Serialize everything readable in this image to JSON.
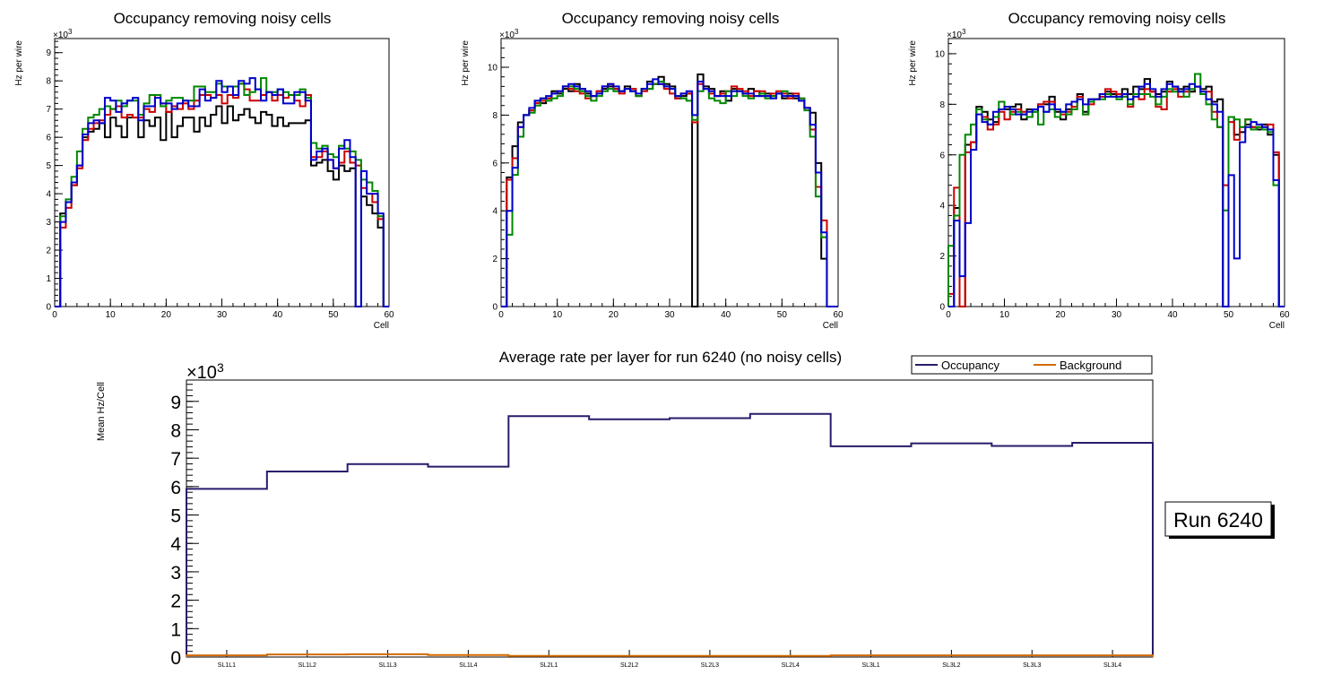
{
  "chart_data": [
    {
      "type": "histogram-step",
      "title": "Occupancy removing noisy cells",
      "xlabel": "Cell",
      "ylabel": "Hz per wire",
      "y_multiplier_label": "×10",
      "y_multiplier_exp": "3",
      "xlim": [
        0,
        60
      ],
      "ylim": [
        0,
        9500
      ],
      "x_ticks": [
        0,
        10,
        20,
        30,
        40,
        50,
        60
      ],
      "y_ticks": [
        0,
        1000,
        2000,
        3000,
        4000,
        5000,
        6000,
        7000,
        8000,
        9000
      ],
      "y_tick_labels": [
        "0",
        "1",
        "2",
        "3",
        "4",
        "5",
        "6",
        "7",
        "8",
        "9"
      ],
      "series": [
        {
          "name": "black",
          "color": "#000000",
          "values": [
            0,
            3300,
            3700,
            4300,
            5000,
            6000,
            6200,
            6300,
            6500,
            6000,
            6700,
            6400,
            6000,
            6700,
            6700,
            6000,
            6600,
            6400,
            6700,
            5900,
            6900,
            6000,
            6400,
            6700,
            6700,
            6200,
            6700,
            6400,
            6800,
            7100,
            6500,
            7100,
            6600,
            6800,
            7000,
            6700,
            6500,
            6900,
            6800,
            6400,
            6700,
            6400,
            6500,
            6500,
            6500,
            6600,
            5000,
            5100,
            5200,
            4800,
            4500,
            5000,
            4800,
            4900,
            0,
            3900,
            3600,
            3300,
            2800,
            0
          ]
        },
        {
          "name": "red",
          "color": "#cc0000",
          "values": [
            0,
            2800,
            3500,
            4300,
            4900,
            5900,
            6300,
            6500,
            6600,
            6800,
            7000,
            7100,
            6700,
            6800,
            6700,
            6700,
            7000,
            6900,
            7500,
            7200,
            6900,
            7100,
            7000,
            7200,
            7000,
            7300,
            7500,
            7500,
            7400,
            7500,
            7200,
            7500,
            7400,
            7900,
            7700,
            7300,
            7300,
            7500,
            7600,
            7300,
            7500,
            7400,
            7500,
            7300,
            7100,
            7500,
            5300,
            5300,
            5500,
            5200,
            4900,
            5100,
            5500,
            5100,
            5000,
            4200,
            4000,
            3700,
            3100,
            0
          ]
        },
        {
          "name": "green",
          "color": "#008800",
          "values": [
            0,
            3200,
            3800,
            4600,
            5500,
            6300,
            6700,
            6800,
            7000,
            7100,
            7000,
            7300,
            7100,
            7300,
            7300,
            6800,
            7200,
            7500,
            7500,
            7100,
            7300,
            7400,
            7400,
            7300,
            7300,
            7800,
            7800,
            7600,
            7600,
            7900,
            7800,
            7800,
            7800,
            7900,
            7500,
            7600,
            7700,
            8100,
            7600,
            7600,
            7700,
            7600,
            7500,
            7500,
            7700,
            7400,
            5800,
            5600,
            5700,
            5400,
            5300,
            5700,
            5600,
            5500,
            5200,
            4500,
            4400,
            4100,
            3200,
            0
          ]
        },
        {
          "name": "blue",
          "color": "#0000cc",
          "values": [
            0,
            3000,
            3700,
            4400,
            5000,
            6100,
            6500,
            6600,
            6500,
            7400,
            7300,
            6900,
            7200,
            7300,
            7400,
            6600,
            7100,
            7100,
            7400,
            7200,
            7200,
            7000,
            7200,
            7300,
            7100,
            7100,
            7700,
            7300,
            7400,
            8000,
            7600,
            7800,
            7500,
            8000,
            7900,
            8100,
            7700,
            7300,
            7600,
            7500,
            7700,
            7200,
            7200,
            7600,
            7600,
            7300,
            5200,
            5500,
            5600,
            5200,
            4900,
            5600,
            5900,
            5300,
            0,
            4800,
            4000,
            4000,
            3300,
            0
          ]
        }
      ]
    },
    {
      "type": "histogram-step",
      "title": "Occupancy removing noisy cells",
      "xlabel": "Cell",
      "ylabel": "Hz per wire",
      "y_multiplier_label": "×10",
      "y_multiplier_exp": "3",
      "xlim": [
        0,
        60
      ],
      "ylim": [
        0,
        11200
      ],
      "x_ticks": [
        0,
        10,
        20,
        30,
        40,
        50,
        60
      ],
      "y_ticks": [
        0,
        2000,
        4000,
        6000,
        8000,
        10000
      ],
      "y_tick_labels": [
        "0",
        "2",
        "4",
        "6",
        "8",
        "10"
      ],
      "series": [
        {
          "name": "black",
          "color": "#000000",
          "values": [
            0,
            5400,
            6700,
            7700,
            8000,
            8200,
            8600,
            8500,
            8700,
            9000,
            8900,
            9100,
            9000,
            9300,
            9100,
            8900,
            8800,
            9000,
            9100,
            9200,
            9100,
            9000,
            9200,
            9000,
            8800,
            9100,
            9400,
            9300,
            9600,
            9300,
            9200,
            8700,
            8800,
            8900,
            0,
            9700,
            9200,
            9100,
            8800,
            9000,
            8600,
            9100,
            9000,
            8900,
            9100,
            9000,
            8800,
            8900,
            8800,
            8900,
            8700,
            8900,
            8700,
            8600,
            8300,
            8100,
            6000,
            2000,
            0,
            0
          ]
        },
        {
          "name": "red",
          "color": "#cc0000",
          "values": [
            0,
            5300,
            6200,
            7500,
            8000,
            8200,
            8500,
            8600,
            8700,
            8900,
            9000,
            9200,
            9100,
            9000,
            8900,
            8700,
            8800,
            9000,
            9200,
            9300,
            9100,
            8900,
            9100,
            9100,
            8800,
            9000,
            9100,
            9300,
            9300,
            9100,
            8900,
            8700,
            8900,
            8900,
            7700,
            9300,
            9100,
            8900,
            8800,
            8900,
            9000,
            9200,
            9100,
            9000,
            8800,
            9000,
            9000,
            8800,
            8900,
            9000,
            8900,
            8700,
            8900,
            8700,
            8300,
            7400,
            5000,
            3600,
            0,
            0
          ]
        },
        {
          "name": "green",
          "color": "#008800",
          "values": [
            0,
            3000,
            5500,
            7100,
            8000,
            8100,
            8400,
            8700,
            8600,
            8700,
            8800,
            9200,
            9200,
            9100,
            9000,
            8800,
            8600,
            8800,
            9000,
            9100,
            9000,
            9000,
            9100,
            9000,
            8800,
            9100,
            9100,
            9300,
            9400,
            9200,
            9100,
            8800,
            8700,
            8600,
            7800,
            9000,
            9100,
            8700,
            8600,
            8500,
            9000,
            8800,
            9000,
            8800,
            8700,
            8800,
            8900,
            8700,
            8800,
            8900,
            9000,
            8800,
            8800,
            8700,
            8200,
            7100,
            4600,
            2900,
            0,
            0
          ]
        },
        {
          "name": "blue",
          "color": "#0000cc",
          "values": [
            0,
            4000,
            5800,
            7500,
            8000,
            8300,
            8600,
            8700,
            8800,
            8900,
            9000,
            9200,
            9300,
            9200,
            9100,
            9000,
            8800,
            8900,
            9200,
            9300,
            9200,
            9000,
            9100,
            9000,
            8900,
            9100,
            9300,
            9500,
            9300,
            9200,
            9100,
            8800,
            8900,
            9000,
            8000,
            9400,
            9100,
            9000,
            8800,
            8800,
            8800,
            9000,
            9000,
            8900,
            8900,
            8800,
            8800,
            8800,
            8700,
            8900,
            8800,
            8800,
            8800,
            8600,
            8300,
            7600,
            5600,
            3100,
            0,
            0
          ]
        }
      ]
    },
    {
      "type": "histogram-step",
      "title": "Occupancy removing noisy cells",
      "xlabel": "Cell",
      "ylabel": "Hz per wire",
      "y_multiplier_label": "×10",
      "y_multiplier_exp": "3",
      "xlim": [
        0,
        60
      ],
      "ylim": [
        0,
        10600
      ],
      "x_ticks": [
        0,
        10,
        20,
        30,
        40,
        50,
        60
      ],
      "y_ticks": [
        0,
        2000,
        4000,
        6000,
        8000,
        10000
      ],
      "y_tick_labels": [
        "0",
        "2",
        "4",
        "6",
        "8",
        "10"
      ],
      "series": [
        {
          "name": "black",
          "color": "#000000",
          "values": [
            0,
            3900,
            0,
            6400,
            6500,
            7900,
            7700,
            7400,
            7300,
            7800,
            7800,
            7900,
            8000,
            7400,
            7800,
            7700,
            8000,
            8000,
            8300,
            7700,
            7400,
            7800,
            8100,
            8400,
            7700,
            8200,
            8200,
            8400,
            8500,
            8400,
            8300,
            8600,
            8400,
            8700,
            8600,
            9000,
            8500,
            8400,
            8500,
            8900,
            8700,
            8600,
            8700,
            8500,
            8700,
            8600,
            8700,
            8100,
            8200,
            0,
            7500,
            6800,
            6900,
            7200,
            7100,
            7000,
            7200,
            6800,
            6000,
            0
          ]
        },
        {
          "name": "red",
          "color": "#cc0000",
          "values": [
            500,
            4700,
            0,
            6100,
            6500,
            7800,
            7500,
            7000,
            7200,
            7700,
            7400,
            7700,
            7800,
            7700,
            7500,
            7800,
            8000,
            8100,
            8100,
            7800,
            7600,
            7700,
            7900,
            8300,
            7600,
            8000,
            8200,
            8300,
            8600,
            8500,
            8400,
            8300,
            7900,
            8400,
            8200,
            8600,
            8500,
            7900,
            7800,
            8500,
            8600,
            8300,
            8500,
            8600,
            8700,
            8400,
            8500,
            7700,
            7100,
            4800,
            7300,
            6600,
            7100,
            7400,
            7100,
            7100,
            7100,
            7200,
            6100,
            0
          ]
        },
        {
          "name": "green",
          "color": "#008800",
          "values": [
            2400,
            3600,
            6000,
            6800,
            7200,
            7800,
            7400,
            7200,
            7500,
            8100,
            7900,
            7600,
            7700,
            7600,
            7500,
            7700,
            7200,
            7700,
            7800,
            7500,
            7700,
            7600,
            7800,
            8200,
            7600,
            8100,
            8200,
            8200,
            8400,
            8300,
            8200,
            8300,
            8000,
            8400,
            8400,
            8400,
            8300,
            8000,
            8300,
            8600,
            8500,
            8500,
            8300,
            8600,
            9200,
            8400,
            8000,
            7400,
            7100,
            3800,
            7500,
            7400,
            7100,
            7400,
            7000,
            7100,
            7000,
            6900,
            4800,
            0
          ]
        },
        {
          "name": "blue",
          "color": "#0000cc",
          "values": [
            0,
            3400,
            1200,
            3300,
            6200,
            7600,
            7300,
            7200,
            7700,
            7800,
            7900,
            7800,
            7600,
            7600,
            7700,
            7800,
            7900,
            7700,
            8000,
            7800,
            7700,
            8000,
            8100,
            8200,
            8000,
            8200,
            8200,
            8400,
            8300,
            8300,
            8300,
            8400,
            8200,
            8300,
            8700,
            8800,
            8600,
            8300,
            8600,
            8800,
            8700,
            8500,
            8600,
            8800,
            8700,
            8500,
            8200,
            8000,
            7700,
            0,
            5200,
            1900,
            6500,
            7100,
            7300,
            7200,
            7100,
            7000,
            5000,
            0
          ]
        }
      ]
    },
    {
      "type": "histogram-step",
      "title": "Average rate per layer for run 6240 (no noisy cells)",
      "xlabel": "",
      "ylabel": "Mean Hz/Cell",
      "y_multiplier_label": "×10",
      "y_multiplier_exp": "3",
      "ylim": [
        0,
        9750
      ],
      "y_ticks": [
        0,
        1000,
        2000,
        3000,
        4000,
        5000,
        6000,
        7000,
        8000,
        9000
      ],
      "y_tick_labels": [
        "0",
        "1",
        "2",
        "3",
        "4",
        "5",
        "6",
        "7",
        "8",
        "9"
      ],
      "categories": [
        "SL1L1",
        "SL1L2",
        "SL1L3",
        "SL1L4",
        "SL2L1",
        "SL2L2",
        "SL2L3",
        "SL2L4",
        "SL3L1",
        "SL3L2",
        "SL3L3",
        "SL3L4"
      ],
      "legend": [
        "Occupancy",
        "Background"
      ],
      "series": [
        {
          "name": "Occupancy",
          "color": "#2a1a6a",
          "values": [
            5920,
            6530,
            6790,
            6700,
            8480,
            8370,
            8410,
            8560,
            7420,
            7520,
            7430,
            7540
          ]
        },
        {
          "name": "Background",
          "color": "#d36a00",
          "values": [
            60,
            90,
            100,
            70,
            40,
            40,
            40,
            40,
            60,
            60,
            60,
            60
          ]
        }
      ],
      "run_box": "Run 6240"
    }
  ]
}
